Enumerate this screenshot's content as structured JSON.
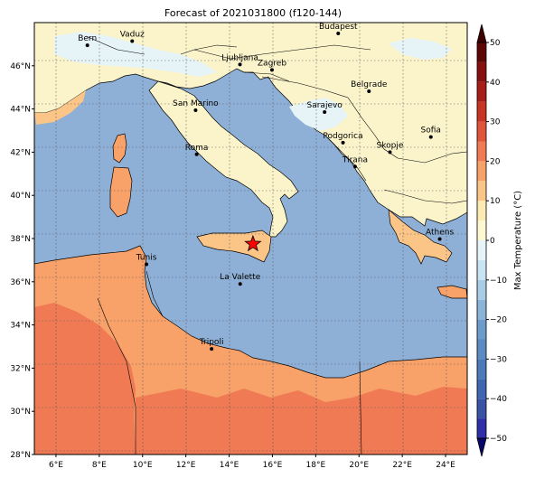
{
  "title": "Forecast of 2021031800 (f120-144)",
  "map": {
    "lat_ticks": [
      "28°N",
      "30°N",
      "32°N",
      "34°N",
      "36°N",
      "38°N",
      "40°N",
      "42°N",
      "44°N",
      "46°N"
    ],
    "lon_ticks": [
      "6°E",
      "8°E",
      "10°E",
      "12°E",
      "14°E",
      "16°E",
      "18°E",
      "20°E",
      "22°E",
      "24°E"
    ],
    "cities": [
      {
        "name": "Bern",
        "lon": 7.45,
        "lat": 46.95
      },
      {
        "name": "Vaduz",
        "lon": 9.52,
        "lat": 47.14
      },
      {
        "name": "Budapest",
        "lon": 19.04,
        "lat": 47.5
      },
      {
        "name": "Ljubljana",
        "lon": 14.5,
        "lat": 46.06
      },
      {
        "name": "Zagreb",
        "lon": 15.98,
        "lat": 45.81
      },
      {
        "name": "San Marino",
        "lon": 12.45,
        "lat": 43.94
      },
      {
        "name": "Belgrade",
        "lon": 20.46,
        "lat": 44.82
      },
      {
        "name": "Sarajevo",
        "lon": 18.41,
        "lat": 43.86
      },
      {
        "name": "Sofia",
        "lon": 23.32,
        "lat": 42.7
      },
      {
        "name": "Roma",
        "lon": 12.5,
        "lat": 41.9
      },
      {
        "name": "Podgorica",
        "lon": 19.26,
        "lat": 42.44
      },
      {
        "name": "Skopje",
        "lon": 21.43,
        "lat": 42.0
      },
      {
        "name": "Tirana",
        "lon": 19.82,
        "lat": 41.33
      },
      {
        "name": "Athens",
        "lon": 23.73,
        "lat": 37.98
      },
      {
        "name": "Tunis",
        "lon": 10.18,
        "lat": 36.81
      },
      {
        "name": "La Valette",
        "lon": 14.51,
        "lat": 35.9
      },
      {
        "name": "Tripoli",
        "lon": 13.19,
        "lat": 32.89
      }
    ],
    "marker": {
      "symbol": "star",
      "lon": 15.1,
      "lat": 37.75,
      "color": "#ff0000"
    }
  },
  "colorbar": {
    "label": "Max Temperature (°C)",
    "ticks": [
      "50",
      "40",
      "30",
      "20",
      "10",
      "0",
      "−10",
      "−20",
      "−30",
      "−40",
      "−50"
    ],
    "colors": {
      "-55": "#08086b",
      "-50": "#22229a",
      "-45": "#2e2ea8",
      "-40": "#3a52a6",
      "-35": "#3f66b0",
      "-30": "#4a7ab8",
      "-25": "#5b8bc2",
      "-20": "#6d9ccc",
      "-15": "#8ab4d8",
      "-10": "#a9cce6",
      "-5": "#c8e3f2",
      "0": "#e6f4f8",
      "5": "#fdf7d2",
      "10": "#fbeab2",
      "15": "#fbc588",
      "20": "#f8a26a",
      "25": "#ef7a53",
      "30": "#e05539",
      "35": "#c83423",
      "40": "#a81c18",
      "45": "#861010",
      "50": "#5c0606",
      "55": "#3e0000"
    }
  }
}
